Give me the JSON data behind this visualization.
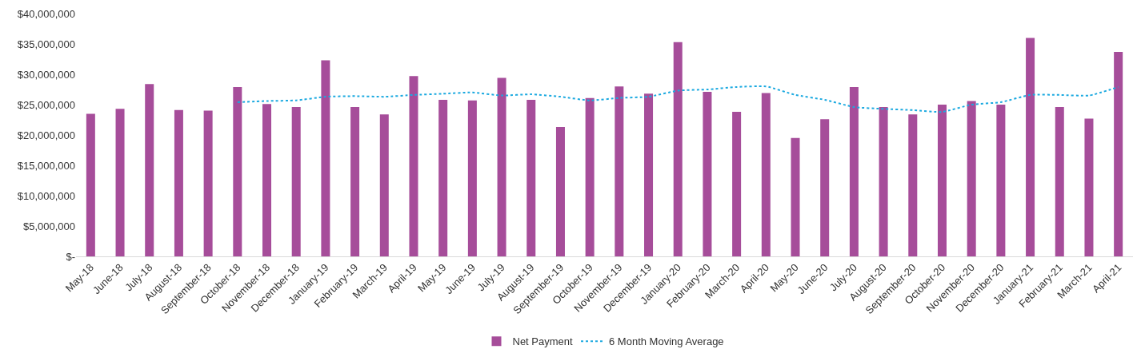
{
  "chart_data": {
    "type": "bar",
    "categories": [
      "May-18",
      "June-18",
      "July-18",
      "August-18",
      "September-18",
      "October-18",
      "November-18",
      "December-18",
      "January-19",
      "February-19",
      "March-19",
      "April-19",
      "May-19",
      "June-19",
      "July-19",
      "August-19",
      "September-19",
      "October-19",
      "November-19",
      "December-19",
      "January-20",
      "February-20",
      "March-20",
      "April-20",
      "May-20",
      "June-20",
      "July-20",
      "August-20",
      "September-20",
      "October-20",
      "November-20",
      "December-20",
      "January-21",
      "February-21",
      "March-21",
      "April-21"
    ],
    "series": [
      {
        "name": "Net Payment",
        "color": "#a64d9a",
        "values": [
          23500000,
          24300000,
          28400000,
          24100000,
          24000000,
          27900000,
          25100000,
          24600000,
          32300000,
          24600000,
          23400000,
          29700000,
          25800000,
          25700000,
          29400000,
          25800000,
          21300000,
          26100000,
          28000000,
          26800000,
          35300000,
          27100000,
          23800000,
          26900000,
          19500000,
          22600000,
          27900000,
          24600000,
          23400000,
          25000000,
          25600000,
          25000000,
          36000000,
          24600000,
          22700000,
          33700000
        ]
      },
      {
        "name": "6 Month Moving Average",
        "type": "line",
        "color": "#1ba9e0",
        "line_style": "dotted",
        "values": [
          null,
          null,
          null,
          null,
          null,
          25400000,
          25600000,
          25700000,
          26300000,
          26400000,
          26300000,
          26600000,
          26800000,
          27000000,
          26500000,
          26700000,
          26300000,
          25700000,
          26100000,
          26300000,
          27300000,
          27500000,
          27900000,
          28000000,
          26600000,
          25800000,
          24600000,
          24300000,
          24100000,
          23800000,
          25000000,
          25400000,
          26600000,
          26600000,
          26500000,
          27900000
        ]
      }
    ],
    "ylim": [
      0,
      40000000
    ],
    "yticks": [
      {
        "value": 0,
        "label": "$-"
      },
      {
        "value": 5000000,
        "label": "$5,000,000"
      },
      {
        "value": 10000000,
        "label": "$10,000,000"
      },
      {
        "value": 15000000,
        "label": "$15,000,000"
      },
      {
        "value": 20000000,
        "label": "$20,000,000"
      },
      {
        "value": 25000000,
        "label": "$25,000,000"
      },
      {
        "value": 30000000,
        "label": "$30,000,000"
      },
      {
        "value": 35000000,
        "label": "$35,000,000"
      },
      {
        "value": 40000000,
        "label": "$40,000,000"
      }
    ],
    "legend": "bottom"
  }
}
